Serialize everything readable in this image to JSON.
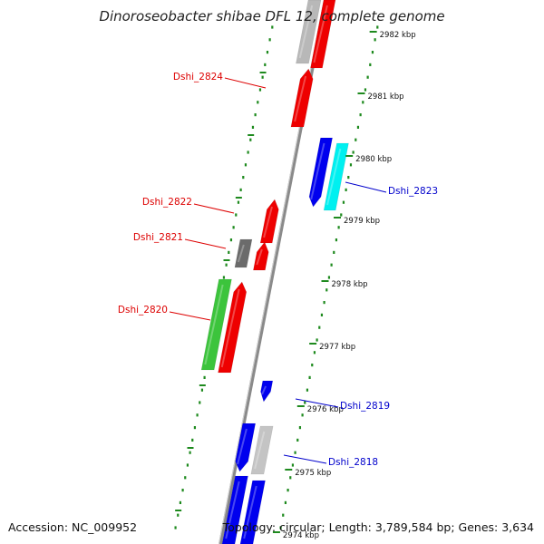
{
  "title": "Dinoroseobacter shibae DFL 12, complete genome",
  "accession": "Accession: NC_009952",
  "topology": "Topology: circular; Length: 3,789,584 bp; Genes: 3,634",
  "colors": {
    "forward_label": "#dd0000",
    "reverse_label": "#0000cc",
    "tick": "#1e8a1e",
    "backbone": "#8a8a8a"
  },
  "kbp_ticks": [
    "2982 kbp",
    "2981 kbp",
    "2980 kbp",
    "2979 kbp",
    "2978 kbp",
    "2977 kbp",
    "2976 kbp",
    "2975 kbp",
    "2974 kbp"
  ],
  "gene_labels": [
    {
      "text": "Dshi_2824",
      "strand": "forward"
    },
    {
      "text": "Dshi_2823",
      "strand": "reverse"
    },
    {
      "text": "Dshi_2822",
      "strand": "forward"
    },
    {
      "text": "Dshi_2821",
      "strand": "forward"
    },
    {
      "text": "Dshi_2820",
      "strand": "forward"
    },
    {
      "text": "Dshi_2819",
      "strand": "reverse"
    },
    {
      "text": "Dshi_2818",
      "strand": "reverse"
    }
  ],
  "features": [
    {
      "track": "forward",
      "color": "#b8b8b8",
      "direction": "none"
    },
    {
      "track": "forward",
      "color": "#ee0000",
      "direction": "none"
    },
    {
      "track": "forward",
      "color": "#ee0000",
      "direction": "up"
    },
    {
      "track": "reverse",
      "color": "#0000ee",
      "direction": "down"
    },
    {
      "track": "reverse",
      "color": "#00f0f0",
      "direction": "none"
    },
    {
      "track": "forward",
      "color": "#ee0000",
      "direction": "up"
    },
    {
      "track": "outer",
      "color": "#6b6b6b",
      "direction": "none"
    },
    {
      "track": "forward",
      "color": "#ee0000",
      "direction": "up"
    },
    {
      "track": "outer",
      "color": "#3cc43c",
      "direction": "none"
    },
    {
      "track": "forward",
      "color": "#ee0000",
      "direction": "up"
    },
    {
      "track": "reverse",
      "color": "#0000ee",
      "direction": "down"
    },
    {
      "track": "reverse",
      "color": "#0000ee",
      "direction": "down"
    },
    {
      "track": "reverse",
      "color": "#c4c4c4",
      "direction": "none"
    },
    {
      "track": "reverse",
      "color": "#0000ee",
      "direction": "none"
    },
    {
      "track": "reverse",
      "color": "#0000ee",
      "direction": "none"
    }
  ]
}
